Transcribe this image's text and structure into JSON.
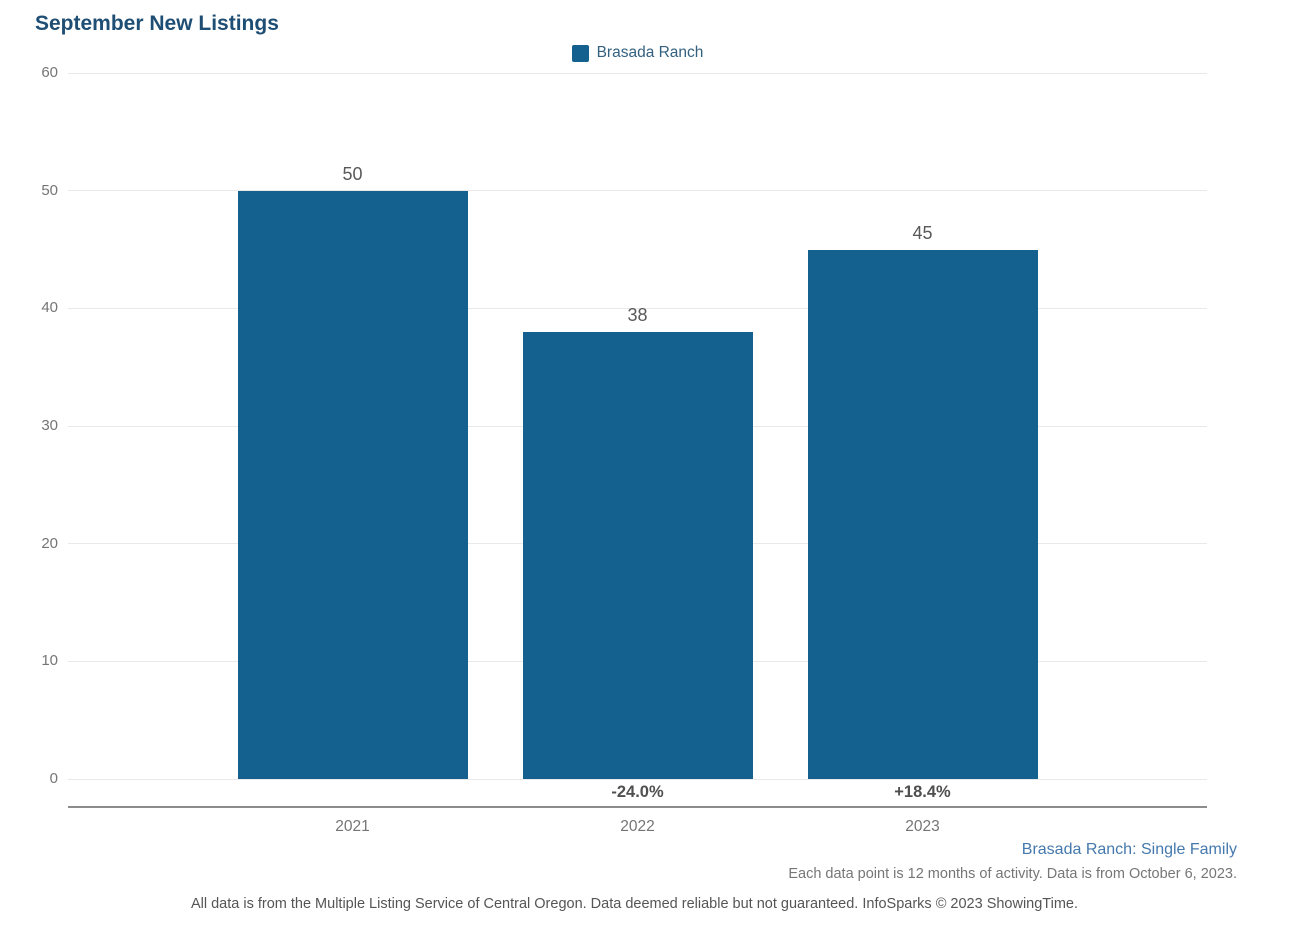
{
  "title": "September New Listings",
  "legend": {
    "label": "Brasada Ranch",
    "swatch_color": "#14608f"
  },
  "chart_data": {
    "type": "bar",
    "title": "September New Listings",
    "series_name": "Brasada Ranch",
    "categories": [
      "2021",
      "2022",
      "2023"
    ],
    "values": [
      50,
      38,
      45
    ],
    "bar_value_labels": [
      "50",
      "38",
      "45"
    ],
    "pct_change_labels": [
      "",
      "-24.0%",
      "+18.4%"
    ],
    "xlabel": "",
    "ylabel": "",
    "ylim": [
      0,
      60
    ],
    "yticks": [
      0,
      10,
      20,
      30,
      40,
      50,
      60
    ],
    "grid": true,
    "legend_position": "top-center",
    "bar_color": "#14608f",
    "gridline_color": "#e9e9e9",
    "axis_line_color": "#8c8c8c",
    "title_color": "#1f4e74"
  },
  "annotations": {
    "series_note": "Brasada Ranch: Single Family",
    "data_note": "Each data point is 12 months of activity. Data is from October 6, 2023.",
    "footer": "All data is from the Multiple Listing Service of Central Oregon. Data deemed reliable but not guaranteed. InfoSparks © 2023 ShowingTime."
  }
}
